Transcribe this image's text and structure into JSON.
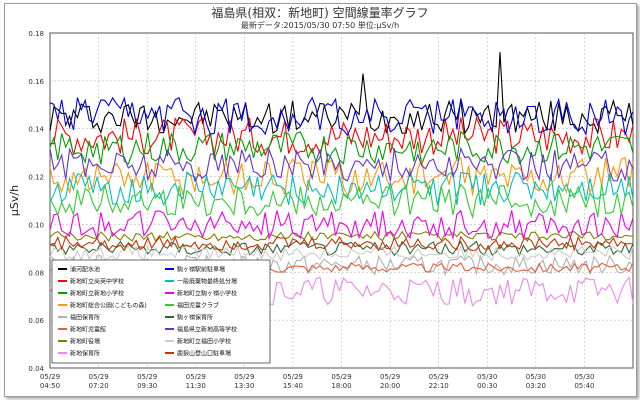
{
  "chart_data": {
    "type": "line",
    "title": "福島県(相双：新地町) 空間線量率グラフ",
    "subtitle": "最新データ:2015/05/30 07:50 単位:μSv/h",
    "ylabel": "μSv/h",
    "xlabel": "",
    "ylim": [
      0.04,
      0.18
    ],
    "yticks": [
      "0.04",
      "0.06",
      "0.08",
      "0.10",
      "0.12",
      "0.14",
      "0.16",
      "0.18"
    ],
    "grid": true,
    "legend_position": "bottom-left",
    "xticks": [
      {
        "date": "05/29",
        "time": "04:50"
      },
      {
        "date": "05/29",
        "time": "07:20"
      },
      {
        "date": "05/29",
        "time": "09:30"
      },
      {
        "date": "05/29",
        "time": "11:30"
      },
      {
        "date": "05/29",
        "time": "13:30"
      },
      {
        "date": "05/29",
        "time": "15:40"
      },
      {
        "date": "05/29",
        "time": "18:00"
      },
      {
        "date": "05/29",
        "time": "20:00"
      },
      {
        "date": "05/29",
        "time": "22:10"
      },
      {
        "date": "05/30",
        "time": "00:30"
      },
      {
        "date": "05/30",
        "time": "03:20"
      },
      {
        "date": "05/30",
        "time": "05:40"
      }
    ],
    "series": [
      {
        "name": "浦河配水池",
        "color": "#000000",
        "mean": 0.145,
        "amp": 0.007
      },
      {
        "name": "新地町立尚英中学校",
        "color": "#ff0000",
        "mean": 0.137,
        "amp": 0.008
      },
      {
        "name": "新地町立新地小学校",
        "color": "#00a000",
        "mean": 0.132,
        "amp": 0.007
      },
      {
        "name": "新地町総合公園(こどもの森)",
        "color": "#ff9900",
        "mean": 0.12,
        "amp": 0.008
      },
      {
        "name": "福田保育所",
        "color": "#b0b0b0",
        "mean": 0.083,
        "amp": 0.004
      },
      {
        "name": "新地町児童館",
        "color": "#e06040",
        "mean": 0.082,
        "amp": 0.002
      },
      {
        "name": "新地町役場",
        "color": "#808000",
        "mean": 0.095,
        "amp": 0.002
      },
      {
        "name": "新地保育所",
        "color": "#ee88ee",
        "mean": 0.072,
        "amp": 0.006
      },
      {
        "name": "駒ヶ嶺駅前駐車場",
        "color": "#0000dd",
        "mean": 0.145,
        "amp": 0.008
      },
      {
        "name": "一般廃棄物最終処分場",
        "color": "#00c0c0",
        "mean": 0.115,
        "amp": 0.007
      },
      {
        "name": "新地町立駒ヶ嶺小学校",
        "color": "#ee00ee",
        "mean": 0.1,
        "amp": 0.006
      },
      {
        "name": "福田児童クラブ",
        "color": "#33cc33",
        "mean": 0.11,
        "amp": 0.007
      },
      {
        "name": "駒ヶ嶺保育所",
        "color": "#336633",
        "mean": 0.09,
        "amp": 0.003
      },
      {
        "name": "福島県立新地高等学校",
        "color": "#6633cc",
        "mean": 0.125,
        "amp": 0.007
      },
      {
        "name": "新地町立福田小学校",
        "color": "#cccccc",
        "mean": 0.088,
        "amp": 0.003
      },
      {
        "name": "鹿狼山登山口駐車場",
        "color": "#cc3300",
        "mean": 0.092,
        "amp": 0.003
      }
    ]
  }
}
